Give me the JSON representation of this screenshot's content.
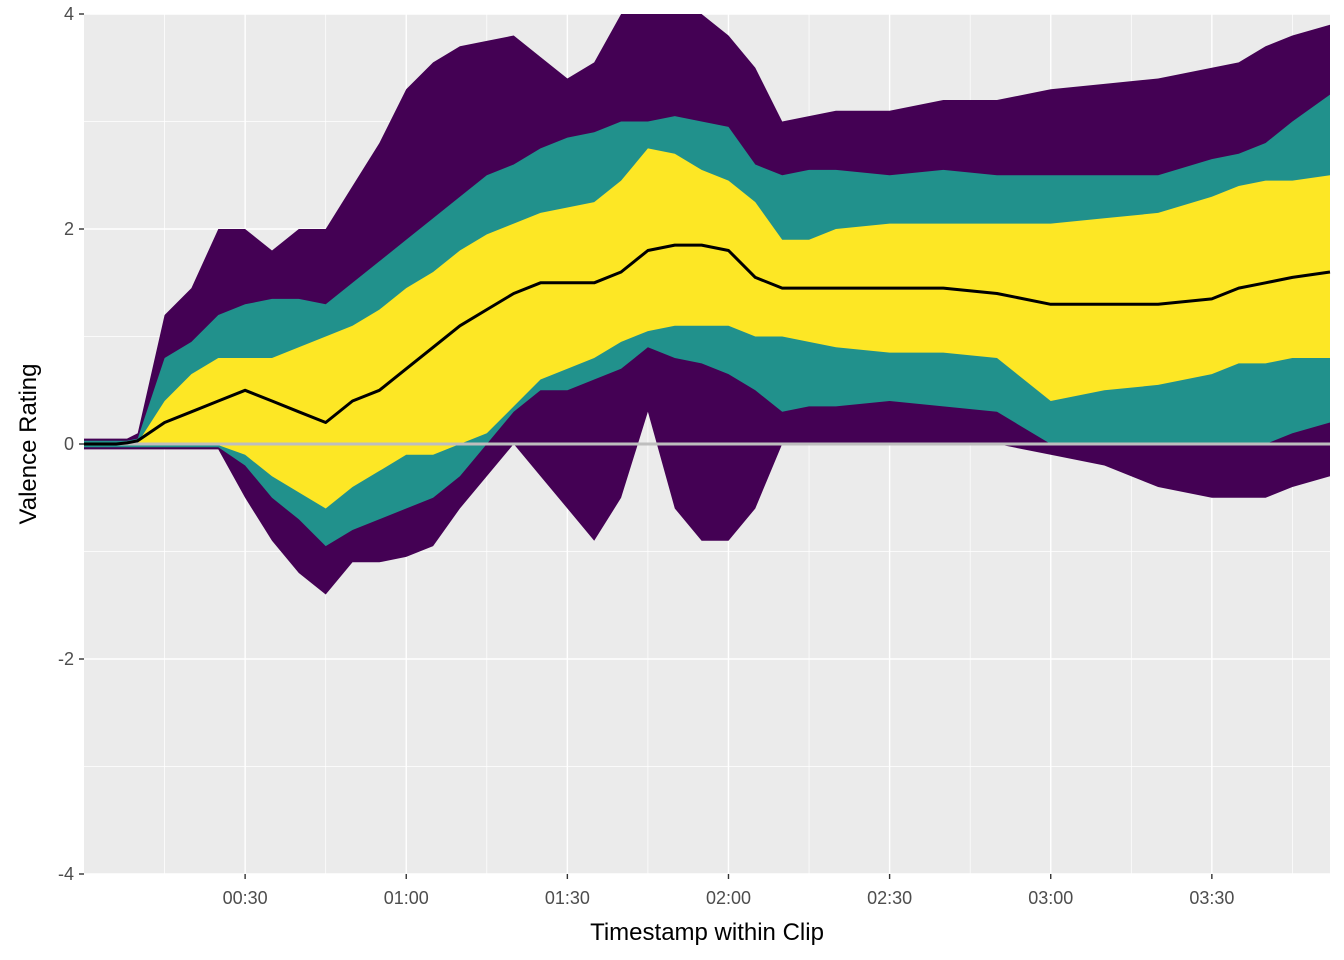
{
  "chart_data": {
    "type": "area",
    "title": "",
    "xlabel": "Timestamp within Clip",
    "ylabel": "Valence Rating",
    "x_unit": "mm:ss",
    "xlim": [
      "00:00",
      "03:52"
    ],
    "ylim": [
      -4,
      4
    ],
    "x_ticks": [
      "00:30",
      "01:00",
      "01:30",
      "02:00",
      "02:30",
      "03:00",
      "03:30"
    ],
    "y_ticks": [
      "-4",
      "-2",
      "0",
      "2",
      "4"
    ],
    "grid": true,
    "legend": "none",
    "reference_line": {
      "y": 0,
      "color": "#bebebe"
    },
    "colors": {
      "panel": "#ebebeb",
      "grid": "#ffffff",
      "outer_band": "#440154",
      "middle_band": "#21918c",
      "inner_band": "#fde725",
      "median": "#000000"
    },
    "x": [
      "00:00",
      "00:06",
      "00:08",
      "00:10",
      "00:15",
      "00:20",
      "00:25",
      "00:30",
      "00:35",
      "00:40",
      "00:45",
      "00:50",
      "00:55",
      "01:00",
      "01:05",
      "01:10",
      "01:15",
      "01:20",
      "01:25",
      "01:30",
      "01:35",
      "01:40",
      "01:45",
      "01:50",
      "01:55",
      "02:00",
      "02:05",
      "02:10",
      "02:15",
      "02:20",
      "02:30",
      "02:40",
      "02:50",
      "03:00",
      "03:10",
      "03:20",
      "03:30",
      "03:35",
      "03:40",
      "03:45",
      "03:52"
    ],
    "series": [
      {
        "values": [
          -0.05,
          -0.05,
          -0.05,
          -0.05,
          -0.05,
          -0.05,
          -0.05,
          -0.5,
          -0.9,
          -1.2,
          -1.4,
          -1.1,
          -1.1,
          -1.05,
          -0.95,
          -0.6,
          -0.3,
          0.0,
          -0.3,
          -0.6,
          -0.9,
          -0.5,
          0.3,
          -0.6,
          -0.9,
          -0.9,
          -0.6,
          0.0,
          0.0,
          0.0,
          0.0,
          0.0,
          0.0,
          -0.1,
          -0.2,
          -0.4,
          -0.5,
          -0.5,
          -0.5,
          -0.4,
          -0.3
        ]
      },
      {
        "values": [
          -0.03,
          -0.03,
          -0.03,
          -0.03,
          -0.03,
          -0.03,
          -0.03,
          -0.2,
          -0.5,
          -0.7,
          -0.95,
          -0.8,
          -0.7,
          -0.6,
          -0.5,
          -0.3,
          0.0,
          0.3,
          0.5,
          0.5,
          0.6,
          0.7,
          0.9,
          0.8,
          0.75,
          0.65,
          0.5,
          0.3,
          0.35,
          0.35,
          0.4,
          0.35,
          0.3,
          0.0,
          0.0,
          0.0,
          0.0,
          0.0,
          0.0,
          0.1,
          0.2
        ]
      },
      {
        "values": [
          -0.01,
          -0.01,
          -0.01,
          -0.01,
          -0.01,
          -0.01,
          -0.01,
          -0.1,
          -0.3,
          -0.45,
          -0.6,
          -0.4,
          -0.25,
          -0.1,
          -0.1,
          0.0,
          0.1,
          0.35,
          0.6,
          0.7,
          0.8,
          0.95,
          1.05,
          1.1,
          1.1,
          1.1,
          1.0,
          1.0,
          0.95,
          0.9,
          0.85,
          0.85,
          0.8,
          0.4,
          0.5,
          0.55,
          0.65,
          0.75,
          0.75,
          0.8,
          0.8
        ]
      },
      {
        "values": [
          0.0,
          0.0,
          0.01,
          0.03,
          0.2,
          0.3,
          0.4,
          0.5,
          0.4,
          0.3,
          0.2,
          0.4,
          0.5,
          0.7,
          0.9,
          1.1,
          1.25,
          1.4,
          1.5,
          1.5,
          1.5,
          1.6,
          1.8,
          1.85,
          1.85,
          1.8,
          1.55,
          1.45,
          1.45,
          1.45,
          1.45,
          1.45,
          1.4,
          1.3,
          1.3,
          1.3,
          1.35,
          1.45,
          1.5,
          1.55,
          1.6
        ]
      },
      {
        "values": [
          0.01,
          0.01,
          0.01,
          0.01,
          0.4,
          0.65,
          0.8,
          0.8,
          0.8,
          0.9,
          1.0,
          1.1,
          1.25,
          1.45,
          1.6,
          1.8,
          1.95,
          2.05,
          2.15,
          2.2,
          2.25,
          2.45,
          2.75,
          2.7,
          2.55,
          2.45,
          2.25,
          1.9,
          1.9,
          2.0,
          2.05,
          2.05,
          2.05,
          2.05,
          2.1,
          2.15,
          2.3,
          2.4,
          2.45,
          2.45,
          2.5
        ]
      },
      {
        "values": [
          0.03,
          0.03,
          0.03,
          0.05,
          0.8,
          0.95,
          1.2,
          1.3,
          1.35,
          1.35,
          1.3,
          1.5,
          1.7,
          1.9,
          2.1,
          2.3,
          2.5,
          2.6,
          2.75,
          2.85,
          2.9,
          3.0,
          3.0,
          3.05,
          3.0,
          2.95,
          2.6,
          2.5,
          2.55,
          2.55,
          2.5,
          2.55,
          2.5,
          2.5,
          2.5,
          2.5,
          2.65,
          2.7,
          2.8,
          3.0,
          3.25
        ]
      },
      {
        "values": [
          0.05,
          0.05,
          0.05,
          0.1,
          1.2,
          1.45,
          2.0,
          2.0,
          1.8,
          2.0,
          2.0,
          2.4,
          2.8,
          3.3,
          3.55,
          3.7,
          3.75,
          3.8,
          3.6,
          3.4,
          3.55,
          4.0,
          4.0,
          4.0,
          4.0,
          3.8,
          3.5,
          3.0,
          3.05,
          3.1,
          3.1,
          3.2,
          3.2,
          3.3,
          3.35,
          3.4,
          3.5,
          3.55,
          3.7,
          3.8,
          3.9
        ]
      }
    ]
  }
}
